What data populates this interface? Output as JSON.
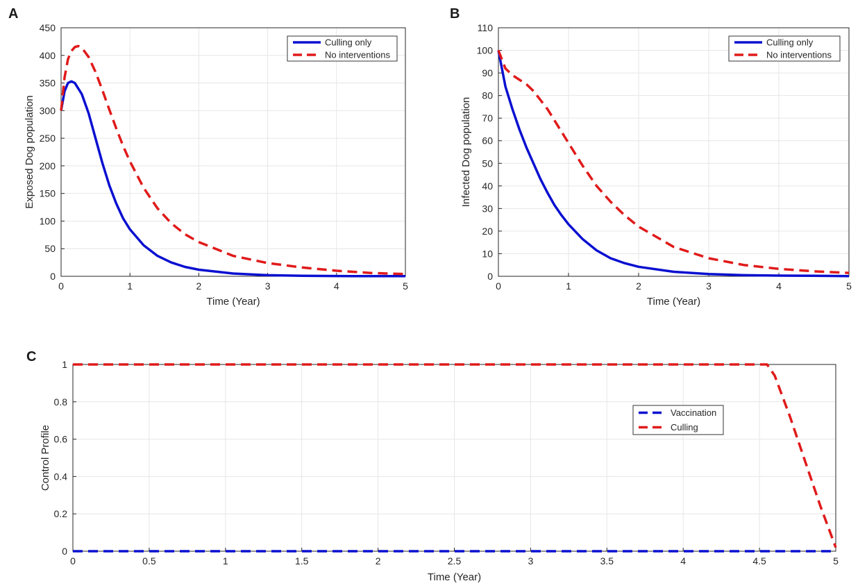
{
  "colors": {
    "blue": "#0a10d0",
    "red": "#e01a1a",
    "grid": "#e6e6e6",
    "axis": "#262626"
  },
  "chart_data": [
    {
      "panel_label": "A",
      "type": "line",
      "xlabel": "Time (Year)",
      "ylabel": "Exposed Dog population",
      "xlim": [
        0,
        5
      ],
      "ylim": [
        0,
        450
      ],
      "xticks": [
        0,
        1,
        2,
        3,
        4,
        5
      ],
      "xtick_labels": [
        "0",
        "1",
        "2",
        "3",
        "4",
        "5"
      ],
      "yticks": [
        0,
        50,
        100,
        150,
        200,
        250,
        300,
        350,
        400,
        450
      ],
      "ytick_labels": [
        "0",
        "50",
        "100",
        "150",
        "200",
        "250",
        "300",
        "350",
        "400",
        "450"
      ],
      "grid": true,
      "legend_position": "top-right",
      "series": [
        {
          "name": "Culling only",
          "color": "blue",
          "style": "solid",
          "x": [
            0,
            0.05,
            0.1,
            0.15,
            0.2,
            0.3,
            0.4,
            0.5,
            0.6,
            0.7,
            0.8,
            0.9,
            1.0,
            1.2,
            1.4,
            1.6,
            1.8,
            2.0,
            2.5,
            3.0,
            3.5,
            4.0,
            4.5,
            5.0
          ],
          "y": [
            300,
            335,
            350,
            353,
            350,
            330,
            295,
            250,
            205,
            165,
            132,
            105,
            85,
            56,
            37,
            25,
            17,
            12,
            5,
            2,
            1,
            0.5,
            0.3,
            0.2
          ]
        },
        {
          "name": "No interventions",
          "color": "red",
          "style": "dashed",
          "x": [
            0,
            0.05,
            0.1,
            0.15,
            0.2,
            0.25,
            0.3,
            0.4,
            0.5,
            0.6,
            0.7,
            0.8,
            0.9,
            1.0,
            1.2,
            1.4,
            1.6,
            1.8,
            2.0,
            2.5,
            3.0,
            3.5,
            4.0,
            4.5,
            5.0
          ],
          "y": [
            300,
            360,
            393,
            408,
            415,
            417,
            414,
            397,
            370,
            337,
            302,
            268,
            236,
            208,
            160,
            123,
            96,
            76,
            62,
            37,
            24,
            16,
            10,
            6,
            4
          ]
        }
      ]
    },
    {
      "panel_label": "B",
      "type": "line",
      "xlabel": "Time (Year)",
      "ylabel": "Infected Dog population",
      "xlim": [
        0,
        5
      ],
      "ylim": [
        0,
        110
      ],
      "xticks": [
        0,
        1,
        2,
        3,
        4,
        5
      ],
      "xtick_labels": [
        "0",
        "1",
        "2",
        "3",
        "4",
        "5"
      ],
      "yticks": [
        0,
        10,
        20,
        30,
        40,
        50,
        60,
        70,
        80,
        90,
        100,
        110
      ],
      "ytick_labels": [
        "0",
        "10",
        "20",
        "30",
        "40",
        "50",
        "60",
        "70",
        "80",
        "90",
        "100",
        "110"
      ],
      "grid": true,
      "legend_position": "top-right",
      "series": [
        {
          "name": "Culling only",
          "color": "blue",
          "style": "solid",
          "x": [
            0,
            0.1,
            0.2,
            0.3,
            0.4,
            0.5,
            0.6,
            0.7,
            0.8,
            0.9,
            1.0,
            1.2,
            1.4,
            1.6,
            1.8,
            2.0,
            2.5,
            3.0,
            3.5,
            4.0,
            4.5,
            5.0
          ],
          "y": [
            100,
            84,
            74,
            65,
            57,
            50,
            43,
            37,
            31.5,
            27,
            23,
            16.5,
            11.5,
            8,
            5.8,
            4.2,
            2,
            1,
            0.5,
            0.3,
            0.2,
            0.1
          ]
        },
        {
          "name": "No interventions",
          "color": "red",
          "style": "dashed",
          "x": [
            0,
            0.1,
            0.2,
            0.3,
            0.4,
            0.5,
            0.6,
            0.7,
            0.8,
            0.9,
            1.0,
            1.2,
            1.4,
            1.6,
            1.8,
            2.0,
            2.5,
            3.0,
            3.5,
            4.0,
            4.5,
            5.0
          ],
          "y": [
            100,
            92,
            89,
            87,
            85,
            82,
            78,
            74,
            69,
            64,
            59,
            49,
            40,
            33,
            27,
            22,
            13,
            8,
            5,
            3.3,
            2.2,
            1.5
          ]
        }
      ]
    },
    {
      "panel_label": "C",
      "type": "line",
      "xlabel": "Time (Year)",
      "ylabel": "Control Profile",
      "xlim": [
        0,
        5
      ],
      "ylim": [
        0,
        1
      ],
      "xticks": [
        0,
        0.5,
        1,
        1.5,
        2,
        2.5,
        3,
        3.5,
        4,
        4.5,
        5
      ],
      "xtick_labels": [
        "0",
        "0.5",
        "1",
        "1.5",
        "2",
        "2.5",
        "3",
        "3.5",
        "4",
        "4.5",
        "5"
      ],
      "yticks": [
        0,
        0.2,
        0.4,
        0.6,
        0.8,
        1
      ],
      "ytick_labels": [
        "0",
        "0.2",
        "0.4",
        "0.6",
        "0.8",
        "1"
      ],
      "grid": true,
      "legend_position": "right-center",
      "series": [
        {
          "name": "Vaccination",
          "color": "blue",
          "style": "dashed",
          "x": [
            0,
            5
          ],
          "y": [
            0,
            0
          ]
        },
        {
          "name": "Culling",
          "color": "red",
          "style": "dashed",
          "x": [
            0,
            4.55,
            4.6,
            4.7,
            4.8,
            4.9,
            5.0
          ],
          "y": [
            1,
            1,
            0.94,
            0.72,
            0.48,
            0.24,
            0.02
          ]
        }
      ]
    }
  ]
}
